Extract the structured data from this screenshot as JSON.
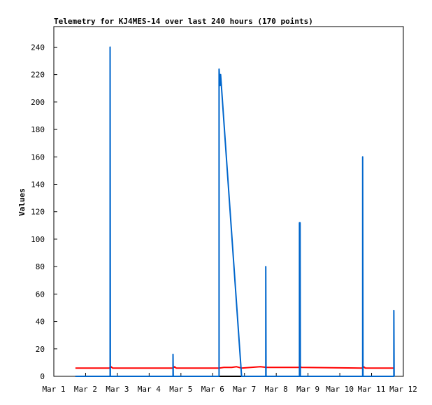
{
  "chart_data": {
    "type": "line",
    "title": "Telemetry for KJ4MES-14 over last 240 hours (170 points)",
    "ylabel": "Values",
    "xlabel": "",
    "ylim": [
      0,
      255
    ],
    "x_range_days": [
      1,
      12
    ],
    "y_ticks": [
      0,
      20,
      40,
      60,
      80,
      100,
      120,
      140,
      160,
      180,
      200,
      220,
      240
    ],
    "x_ticks": [
      {
        "day": 1,
        "label": "Mar 1"
      },
      {
        "day": 2,
        "label": "Mar 2"
      },
      {
        "day": 3,
        "label": "Mar 3"
      },
      {
        "day": 4,
        "label": "Mar 4"
      },
      {
        "day": 5,
        "label": "Mar 5"
      },
      {
        "day": 6,
        "label": "Mar 6"
      },
      {
        "day": 7,
        "label": "Mar 7"
      },
      {
        "day": 8,
        "label": "Mar 8"
      },
      {
        "day": 9,
        "label": "Mar 9"
      },
      {
        "day": 10,
        "label": "Mar 10"
      },
      {
        "day": 11,
        "label": "Mar 11"
      },
      {
        "day": 12,
        "label": "Mar 12"
      }
    ],
    "grid": false,
    "series": [
      {
        "color": "#000000",
        "points": [
          [
            1.68,
            0
          ],
          [
            11.7,
            0
          ]
        ]
      },
      {
        "color": "#ff0000",
        "points": [
          [
            1.68,
            6
          ],
          [
            2.75,
            6
          ],
          [
            2.8,
            7
          ],
          [
            2.85,
            6
          ],
          [
            4.75,
            6
          ],
          [
            4.8,
            7
          ],
          [
            4.85,
            6
          ],
          [
            6.2,
            6
          ],
          [
            6.35,
            6.5
          ],
          [
            6.6,
            6.5
          ],
          [
            6.75,
            7
          ],
          [
            6.9,
            6
          ],
          [
            7.2,
            6.5
          ],
          [
            7.5,
            7
          ],
          [
            7.7,
            6.5
          ],
          [
            8.7,
            6.5
          ],
          [
            8.75,
            7
          ],
          [
            8.8,
            6.5
          ],
          [
            10.7,
            6
          ],
          [
            10.75,
            7
          ],
          [
            10.8,
            6
          ],
          [
            11.7,
            6
          ]
        ]
      },
      {
        "color": "#0066cc",
        "points": [
          [
            1.68,
            0
          ],
          [
            2.77,
            0
          ],
          [
            2.77,
            240
          ],
          [
            2.78,
            0
          ],
          [
            4.75,
            0
          ],
          [
            4.75,
            16
          ],
          [
            4.76,
            0
          ],
          [
            6.2,
            0
          ],
          [
            6.2,
            224
          ],
          [
            6.23,
            212
          ],
          [
            6.25,
            220
          ],
          [
            6.91,
            0
          ],
          [
            7.67,
            0
          ],
          [
            7.67,
            80
          ],
          [
            7.68,
            0
          ],
          [
            8.73,
            0
          ],
          [
            8.73,
            112
          ],
          [
            8.75,
            112
          ],
          [
            8.76,
            0
          ],
          [
            10.72,
            0
          ],
          [
            10.72,
            160
          ],
          [
            10.73,
            0
          ],
          [
            11.7,
            0
          ],
          [
            11.7,
            48
          ],
          [
            11.71,
            0
          ]
        ]
      }
    ]
  }
}
